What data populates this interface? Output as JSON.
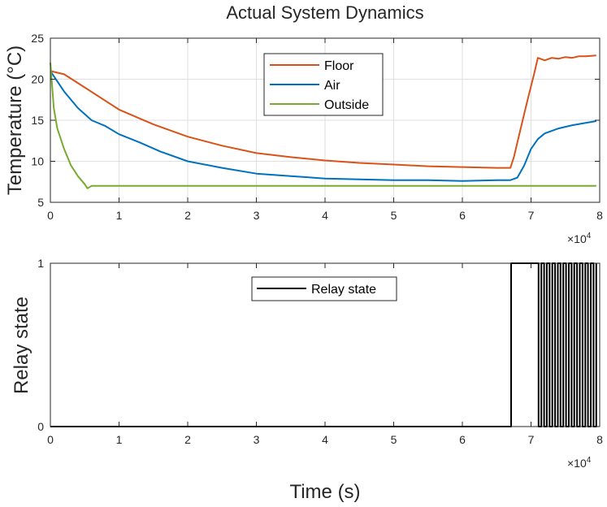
{
  "title": "Actual System Dynamics",
  "colors": {
    "floor": "#D95319",
    "air": "#0072BD",
    "outside": "#77AC30",
    "relay": "#000000",
    "grid": "#DFDFDF",
    "axis": "#262626"
  },
  "chart_data": [
    {
      "type": "line",
      "title": "Actual System Dynamics",
      "xlabel": "",
      "ylabel": "Temperature (°C)",
      "xlim": [
        0,
        80000
      ],
      "ylim": [
        5,
        25
      ],
      "x_ticks": [
        0,
        10000,
        20000,
        30000,
        40000,
        50000,
        60000,
        70000,
        80000
      ],
      "x_tick_labels": [
        "0",
        "1",
        "2",
        "3",
        "4",
        "5",
        "6",
        "7",
        "8"
      ],
      "x_multiplier": "×10",
      "x_multiplier_exp": "4",
      "y_ticks": [
        5,
        10,
        15,
        20,
        25
      ],
      "y_tick_labels": [
        "5",
        "10",
        "15",
        "20",
        "25"
      ],
      "grid": true,
      "legend_position": "top-center",
      "series": [
        {
          "name": "Floor",
          "color_key": "floor",
          "x": [
            0,
            2000,
            5000,
            10000,
            15000,
            20000,
            25000,
            30000,
            35000,
            40000,
            45000,
            50000,
            55000,
            60000,
            65000,
            67000,
            67500,
            68500,
            69500,
            70500,
            71000,
            72000,
            73000,
            74000,
            75000,
            76000,
            77000,
            78000,
            79500
          ],
          "y": [
            21.0,
            20.6,
            19.0,
            16.3,
            14.5,
            13.0,
            11.9,
            11.0,
            10.5,
            10.1,
            9.8,
            9.6,
            9.4,
            9.3,
            9.2,
            9.2,
            10.5,
            14.0,
            17.5,
            20.8,
            22.6,
            22.3,
            22.6,
            22.5,
            22.7,
            22.6,
            22.8,
            22.8,
            22.9
          ]
        },
        {
          "name": "Air",
          "color_key": "air",
          "x": [
            0,
            2000,
            4000,
            6000,
            8000,
            10000,
            13000,
            16000,
            20000,
            25000,
            30000,
            35000,
            40000,
            45000,
            50000,
            55000,
            60000,
            65000,
            67000,
            68000,
            69000,
            70000,
            71000,
            72000,
            74000,
            76000,
            79500
          ],
          "y": [
            21.0,
            18.5,
            16.5,
            15.0,
            14.3,
            13.3,
            12.3,
            11.2,
            10.0,
            9.2,
            8.5,
            8.2,
            7.9,
            7.8,
            7.7,
            7.7,
            7.6,
            7.7,
            7.7,
            8.0,
            9.5,
            11.5,
            12.7,
            13.4,
            14.0,
            14.4,
            14.9
          ]
        },
        {
          "name": "Outside",
          "color_key": "outside",
          "x": [
            0,
            500,
            1000,
            2000,
            3000,
            4000,
            5000,
            5400,
            6000,
            8000,
            10000,
            20000,
            30000,
            40000,
            50000,
            60000,
            70000,
            79500
          ],
          "y": [
            22.0,
            16.5,
            14.0,
            11.5,
            9.5,
            8.2,
            7.2,
            6.7,
            7.0,
            7.0,
            7.0,
            7.0,
            7.0,
            7.0,
            7.0,
            7.0,
            7.0,
            7.0
          ]
        }
      ]
    },
    {
      "type": "line",
      "title": "",
      "xlabel": "Time (s)",
      "ylabel": "Relay state",
      "xlim": [
        0,
        80000
      ],
      "ylim": [
        0,
        1
      ],
      "x_ticks": [
        0,
        10000,
        20000,
        30000,
        40000,
        50000,
        60000,
        70000,
        80000
      ],
      "x_tick_labels": [
        "0",
        "1",
        "2",
        "3",
        "4",
        "5",
        "6",
        "7",
        "8"
      ],
      "x_multiplier": "×10",
      "x_multiplier_exp": "4",
      "y_ticks": [
        0,
        1
      ],
      "y_tick_labels": [
        "0",
        "1"
      ],
      "grid": false,
      "legend_position": "top-center",
      "series": [
        {
          "name": "Relay state",
          "color_key": "relay",
          "x": [
            0,
            67100,
            67100,
            71100,
            71100,
            71500,
            71500,
            71900,
            71900,
            72300,
            72300,
            72700,
            72700,
            73100,
            73100,
            73500,
            73500,
            73900,
            73900,
            74300,
            74300,
            74700,
            74700,
            75100,
            75100,
            75500,
            75500,
            75900,
            75900,
            76300,
            76300,
            76700,
            76700,
            77100,
            77100,
            77500,
            77500,
            77900,
            77900,
            78300,
            78300,
            78700,
            78700,
            79100,
            79100,
            79500,
            79500
          ],
          "y": [
            0,
            0,
            1,
            1,
            0,
            0,
            1,
            1,
            0,
            0,
            1,
            1,
            0,
            0,
            1,
            1,
            0,
            0,
            1,
            1,
            0,
            0,
            1,
            1,
            0,
            0,
            1,
            1,
            0,
            0,
            1,
            1,
            0,
            0,
            1,
            1,
            0,
            0,
            1,
            1,
            0,
            0,
            1,
            1,
            0,
            0,
            1
          ]
        }
      ]
    }
  ]
}
